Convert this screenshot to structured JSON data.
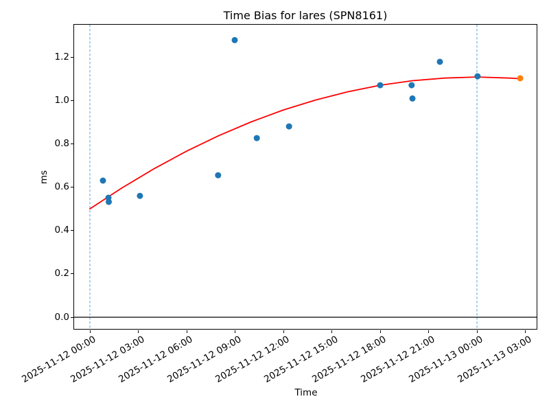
{
  "chart_data": {
    "type": "scatter",
    "title": "Time Bias for lares (SPN8161)",
    "xlabel": "Time",
    "ylabel": "ms",
    "grid": false,
    "legend": "none",
    "x_axis": {
      "tick_labels": [
        "2025-11-12 00:00",
        "2025-11-12 03:00",
        "2025-11-12 06:00",
        "2025-11-12 09:00",
        "2025-11-12 12:00",
        "2025-11-12 15:00",
        "2025-11-12 18:00",
        "2025-11-12 21:00",
        "2025-11-13 00:00",
        "2025-11-13 03:00"
      ],
      "tick_hours": [
        0,
        3,
        6,
        9,
        12,
        15,
        18,
        21,
        24,
        27
      ],
      "range_hours_from_2025_11_12_00_00": [
        -0.95,
        27.75
      ],
      "label_rotation_deg": 30
    },
    "y_axis": {
      "tick_labels": [
        "0.0",
        "0.2",
        "0.4",
        "0.6",
        "0.8",
        "1.0",
        "1.2"
      ],
      "tick_values": [
        0.0,
        0.2,
        0.4,
        0.6,
        0.8,
        1.0,
        1.2
      ],
      "range": [
        -0.054,
        1.346
      ]
    },
    "series": [
      {
        "name": "observations",
        "marker": "circle",
        "color": "#1f77b4",
        "points": [
          {
            "time": "2025-11-12 00:49",
            "hours": 0.81,
            "value": 0.63
          },
          {
            "time": "2025-11-12 01:09",
            "hours": 1.15,
            "value": 0.551
          },
          {
            "time": "2025-11-12 01:10",
            "hours": 1.17,
            "value": 0.532
          },
          {
            "time": "2025-11-12 03:06",
            "hours": 3.1,
            "value": 0.56
          },
          {
            "time": "2025-11-12 07:57",
            "hours": 7.95,
            "value": 0.655
          },
          {
            "time": "2025-11-12 08:59",
            "hours": 8.98,
            "value": 1.278
          },
          {
            "time": "2025-11-12 10:21",
            "hours": 10.35,
            "value": 0.826
          },
          {
            "time": "2025-11-12 12:21",
            "hours": 12.35,
            "value": 0.88
          },
          {
            "time": "2025-11-12 18:00",
            "hours": 18.0,
            "value": 1.07
          },
          {
            "time": "2025-11-12 19:57",
            "hours": 19.95,
            "value": 1.07
          },
          {
            "time": "2025-11-12 20:00",
            "hours": 20.0,
            "value": 1.009
          },
          {
            "time": "2025-11-12 21:42",
            "hours": 21.7,
            "value": 1.178
          },
          {
            "time": "2025-11-13 00:02",
            "hours": 24.04,
            "value": 1.111
          }
        ]
      },
      {
        "name": "latest-observation",
        "marker": "circle",
        "color": "#ff7f0e",
        "points": [
          {
            "time": "2025-11-13 02:41",
            "hours": 26.68,
            "value": 1.102
          }
        ]
      }
    ],
    "fit_line": {
      "name": "polynomial-fit",
      "color": "#ff0000",
      "width": 1.8,
      "points": [
        [
          0,
          0.5
        ],
        [
          2,
          0.597
        ],
        [
          4,
          0.686
        ],
        [
          6,
          0.766
        ],
        [
          8,
          0.838
        ],
        [
          10,
          0.901
        ],
        [
          12,
          0.956
        ],
        [
          14,
          1.002
        ],
        [
          16,
          1.04
        ],
        [
          18,
          1.07
        ],
        [
          20,
          1.091
        ],
        [
          22,
          1.103
        ],
        [
          24,
          1.108
        ],
        [
          26,
          1.103
        ],
        [
          26.68,
          1.1
        ]
      ]
    },
    "vlines": [
      {
        "time": "2025-11-12 00:00",
        "hours": 0,
        "color": "#5ba3d0",
        "style": "dashed"
      },
      {
        "time": "2025-11-13 00:00",
        "hours": 24,
        "color": "#5ba3d0",
        "style": "dashed"
      }
    ],
    "hline": {
      "value": 0.0,
      "color": "#000000",
      "style": "solid"
    },
    "marker_radius_px": 4.5
  },
  "layout_colors": {
    "background": "#ffffff",
    "spine": "#000000",
    "text": "#000000"
  }
}
